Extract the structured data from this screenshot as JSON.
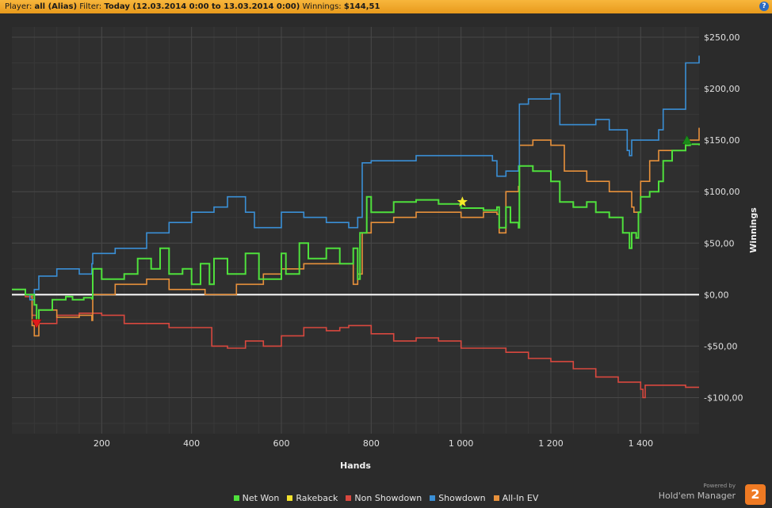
{
  "header": {
    "player_label": "Player:",
    "player_value": "all (Alias)",
    "filter_label": "Filter:",
    "filter_value": "Today (12.03.2014 0:00 to 13.03.2014 0:00)",
    "winnings_label": "Winnings:",
    "winnings_value": "$144,51",
    "help_glyph": "?"
  },
  "brand": {
    "powered": "Powered by",
    "name": "Hold'em Manager",
    "logo_text": "2"
  },
  "chart_data": {
    "type": "line",
    "xlabel": "Hands",
    "ylabel": "Winnings",
    "xlim": [
      0,
      1530
    ],
    "ylim": [
      -135,
      260
    ],
    "xticks": [
      200,
      400,
      600,
      800,
      1000,
      1200,
      1400
    ],
    "xtick_labels": [
      "200",
      "400",
      "600",
      "800",
      "1 000",
      "1 200",
      "1 400"
    ],
    "yticks": [
      250,
      200,
      150,
      100,
      50,
      0,
      -50,
      -100
    ],
    "ytick_labels": [
      "$250,00",
      "$200,00",
      "$150,00",
      "$100,00",
      "$50,00",
      "$0,00",
      "-$50,00",
      "-$100,00"
    ],
    "grid": true,
    "legend_position": "bottom-center",
    "series": [
      {
        "name": "Net Won",
        "color": "#4fe03c",
        "x": [
          0,
          30,
          50,
          55,
          60,
          90,
          120,
          135,
          160,
          178,
          180,
          200,
          250,
          280,
          310,
          330,
          350,
          380,
          400,
          420,
          440,
          450,
          480,
          520,
          550,
          600,
          610,
          640,
          660,
          700,
          730,
          760,
          770,
          775,
          790,
          800,
          850,
          900,
          950,
          1000,
          1050,
          1080,
          1085,
          1100,
          1110,
          1128,
          1130,
          1160,
          1200,
          1220,
          1250,
          1280,
          1300,
          1330,
          1360,
          1375,
          1380,
          1390,
          1395,
          1400,
          1420,
          1440,
          1450,
          1470,
          1500,
          1510,
          1530
        ],
        "y": [
          5,
          0,
          -10,
          -25,
          -15,
          -5,
          -2,
          -5,
          -3,
          -4,
          25,
          15,
          20,
          35,
          25,
          45,
          20,
          25,
          10,
          30,
          10,
          35,
          20,
          40,
          15,
          40,
          20,
          50,
          35,
          45,
          30,
          45,
          15,
          60,
          95,
          80,
          90,
          92,
          88,
          84,
          82,
          85,
          65,
          85,
          70,
          65,
          125,
          120,
          110,
          90,
          85,
          90,
          80,
          75,
          60,
          45,
          60,
          55,
          80,
          95,
          100,
          110,
          130,
          140,
          145,
          146,
          145
        ]
      },
      {
        "name": "Rakeback",
        "color": "#f2e22e",
        "x": [
          0,
          1530
        ],
        "y": [
          0,
          0
        ]
      },
      {
        "name": "Non Showdown",
        "color": "#d9483f",
        "x": [
          0,
          30,
          45,
          55,
          100,
          150,
          200,
          250,
          300,
          350,
          400,
          440,
          445,
          480,
          520,
          560,
          600,
          650,
          700,
          730,
          750,
          800,
          850,
          900,
          950,
          1000,
          1050,
          1100,
          1150,
          1200,
          1250,
          1300,
          1350,
          1400,
          1405,
          1410,
          1450,
          1500,
          1530
        ],
        "y": [
          5,
          -2,
          -20,
          -28,
          -20,
          -18,
          -20,
          -28,
          -28,
          -32,
          -32,
          -32,
          -50,
          -52,
          -45,
          -50,
          -40,
          -32,
          -35,
          -32,
          -30,
          -38,
          -45,
          -42,
          -45,
          -52,
          -52,
          -56,
          -62,
          -65,
          -72,
          -80,
          -85,
          -92,
          -100,
          -88,
          -88,
          -90,
          -90
        ]
      },
      {
        "name": "Showdown",
        "color": "#3a8fd6",
        "x": [
          0,
          30,
          40,
          50,
          60,
          100,
          150,
          178,
          180,
          230,
          300,
          350,
          400,
          450,
          480,
          520,
          540,
          600,
          650,
          700,
          750,
          770,
          780,
          800,
          900,
          1000,
          1030,
          1070,
          1080,
          1100,
          1128,
          1130,
          1150,
          1200,
          1220,
          1250,
          1300,
          1330,
          1370,
          1375,
          1380,
          1420,
          1440,
          1450,
          1500,
          1530
        ],
        "y": [
          5,
          0,
          -5,
          5,
          18,
          25,
          20,
          30,
          40,
          45,
          60,
          70,
          80,
          85,
          95,
          80,
          65,
          80,
          75,
          70,
          65,
          75,
          128,
          130,
          135,
          135,
          135,
          130,
          115,
          120,
          125,
          185,
          190,
          195,
          165,
          165,
          170,
          160,
          140,
          135,
          150,
          150,
          160,
          180,
          225,
          232
        ]
      },
      {
        "name": "All-In EV",
        "color": "#e8913b",
        "x": [
          0,
          30,
          45,
          50,
          60,
          100,
          150,
          178,
          180,
          230,
          300,
          330,
          350,
          400,
          430,
          450,
          500,
          560,
          600,
          650,
          700,
          760,
          770,
          780,
          800,
          850,
          900,
          1000,
          1050,
          1080,
          1085,
          1100,
          1128,
          1130,
          1160,
          1200,
          1230,
          1280,
          1330,
          1380,
          1385,
          1400,
          1420,
          1440,
          1500,
          1530
        ],
        "y": [
          5,
          0,
          -30,
          -40,
          -15,
          -22,
          -20,
          -25,
          0,
          10,
          15,
          15,
          5,
          5,
          0,
          0,
          10,
          20,
          25,
          30,
          30,
          10,
          20,
          60,
          70,
          75,
          80,
          75,
          80,
          78,
          60,
          100,
          105,
          145,
          150,
          145,
          120,
          110,
          100,
          85,
          80,
          110,
          130,
          140,
          150,
          162
        ]
      }
    ],
    "markers": [
      {
        "type": "triangle-down",
        "color": "#e01b1b",
        "x": 55,
        "y": -28
      },
      {
        "type": "star",
        "color": "#f6ea29",
        "x": 1003,
        "y": 90
      },
      {
        "type": "triangle-up",
        "color": "#1a8a1a",
        "x": 1503,
        "y": 150
      }
    ]
  }
}
